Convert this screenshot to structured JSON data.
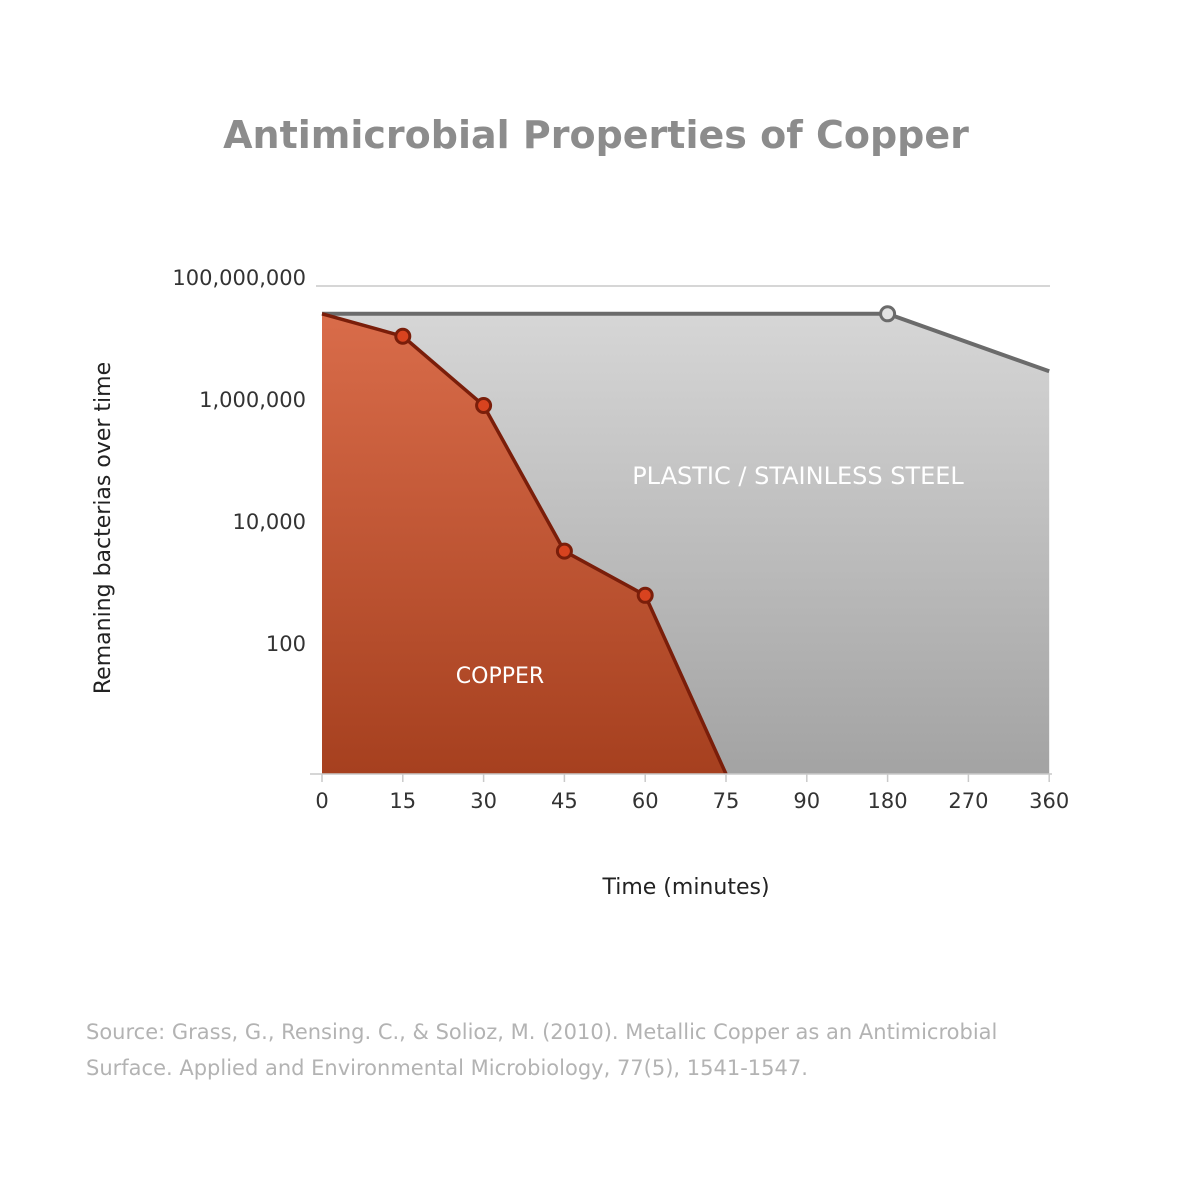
{
  "chart_data": {
    "type": "area",
    "title": "Antimicrobial Properties of Copper",
    "xlabel": "Time (minutes)",
    "ylabel": "Remaning bacterias over time",
    "x_ticks": [
      "0",
      "15",
      "30",
      "45",
      "60",
      "75",
      "90",
      "180",
      "270",
      "360"
    ],
    "y_scale": "log",
    "y_ticks": [
      {
        "value": 100000000,
        "label": "100,000,000"
      },
      {
        "value": 1000000,
        "label": "1,000,000"
      },
      {
        "value": 10000,
        "label": "10,000"
      },
      {
        "value": 100,
        "label": "100"
      }
    ],
    "ylim": [
      1,
      100000000
    ],
    "grid": "top line only",
    "series": [
      {
        "name": "PLASTIC / STAINLESS STEEL",
        "color": "#6b6b6b",
        "fill": "#c0c0c0",
        "x": [
          "0",
          "180",
          "360"
        ],
        "y": [
          35000000,
          35000000,
          4000000
        ],
        "markers": [
          "180"
        ]
      },
      {
        "name": "COPPER",
        "color": "#7a1e0a",
        "fill": "#c4573a",
        "marker_color": "#d8431f",
        "x": [
          "0",
          "15",
          "30",
          "45",
          "60",
          "75"
        ],
        "y": [
          35000000,
          15000000,
          1100000,
          4500,
          850,
          1
        ],
        "markers": [
          "15",
          "30",
          "45",
          "60"
        ]
      }
    ]
  },
  "source": {
    "line1": "Source: Grass, G., Rensing. C., & Solioz, M. (2010). Metallic Copper as an Antimicrobial",
    "line2": "Surface. Applied and Environmental Microbiology, 77(5), 1541-1547."
  }
}
